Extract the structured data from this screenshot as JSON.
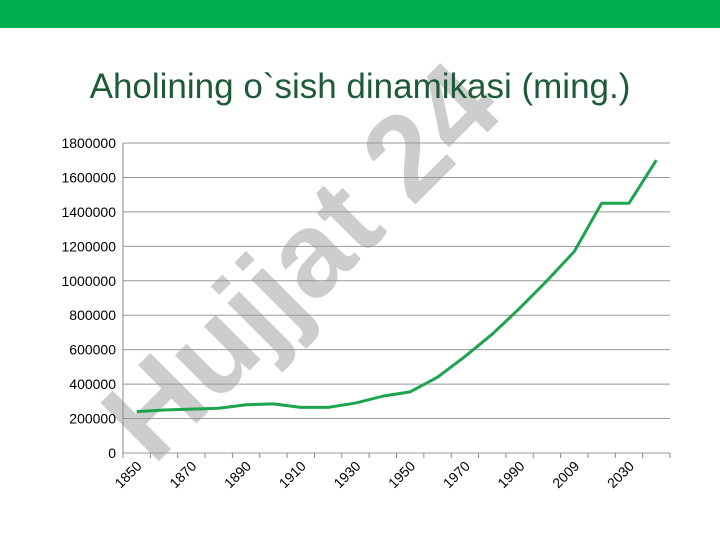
{
  "chart_data": {
    "type": "line",
    "title": "Aholining o`sish dinamikasi (ming.)",
    "watermark": "Hujjat 24",
    "categories": [
      "1850",
      null,
      "1870",
      null,
      "1890",
      null,
      "1910",
      null,
      "1930",
      null,
      "1950",
      null,
      "1970",
      null,
      "1990",
      null,
      "2009",
      null,
      "2030",
      null
    ],
    "series": [
      {
        "color": "#1ea34e",
        "values": [
          240000,
          250000,
          255000,
          260000,
          280000,
          285000,
          265000,
          265000,
          290000,
          330000,
          355000,
          440000,
          560000,
          690000,
          840000,
          1000000,
          1170000,
          1450000,
          1450000,
          1700000
        ]
      }
    ],
    "ylim": [
      0,
      1800000
    ],
    "yticks": [
      0,
      200000,
      400000,
      600000,
      800000,
      1000000,
      1200000,
      1400000,
      1600000,
      1800000
    ],
    "grid": true
  }
}
